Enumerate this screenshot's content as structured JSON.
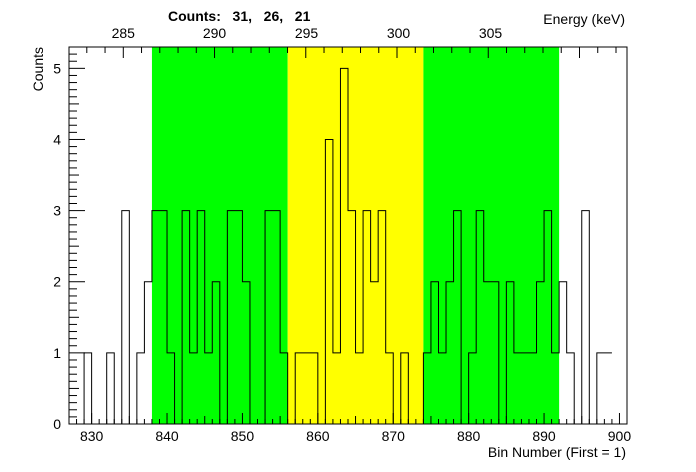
{
  "chart_data": {
    "type": "histogram",
    "title": "Counts:   31,   26,   21",
    "xlabel": "Bin Number (First = 1)",
    "ylabel": "Counts",
    "x2label": "Energy (keV)",
    "xlim": [
      827,
      901
    ],
    "ylim": [
      0,
      5.3
    ],
    "x_ticks": [
      830,
      840,
      850,
      860,
      870,
      880,
      890,
      900
    ],
    "y_ticks": [
      0,
      1,
      2,
      3,
      4,
      5
    ],
    "x2_ticks": [
      {
        "label": "285",
        "bin": 834.2
      },
      {
        "label": "290",
        "bin": 846.3
      },
      {
        "label": "295",
        "bin": 858.5
      },
      {
        "label": "300",
        "bin": 870.7
      },
      {
        "label": "305",
        "bin": 882.9
      }
    ],
    "bands": [
      {
        "from": 838,
        "to": 856,
        "color": "#00ff00"
      },
      {
        "from": 856,
        "to": 874,
        "color": "#ffff00"
      },
      {
        "from": 874,
        "to": 892,
        "color": "#00ff00"
      }
    ],
    "bin_start": 827,
    "bin_width": 1,
    "values": [
      0,
      0,
      1,
      0,
      0,
      1,
      0,
      3,
      0,
      1,
      2,
      3,
      3,
      1,
      0,
      3,
      1,
      3,
      1,
      2,
      0,
      3,
      3,
      2,
      0,
      0,
      3,
      3,
      1,
      0,
      1,
      1,
      1,
      0,
      4,
      1,
      5,
      3,
      1,
      3,
      2,
      3,
      1,
      0,
      1,
      0,
      0,
      1,
      2,
      1,
      2,
      3,
      0,
      1,
      3,
      2,
      2,
      0,
      2,
      1,
      1,
      1,
      2,
      3,
      1,
      2,
      1,
      0,
      3,
      0,
      1,
      1
    ]
  },
  "colors": {
    "band_green": "#00ff00",
    "band_yellow": "#ffff00",
    "line": "#000000"
  }
}
